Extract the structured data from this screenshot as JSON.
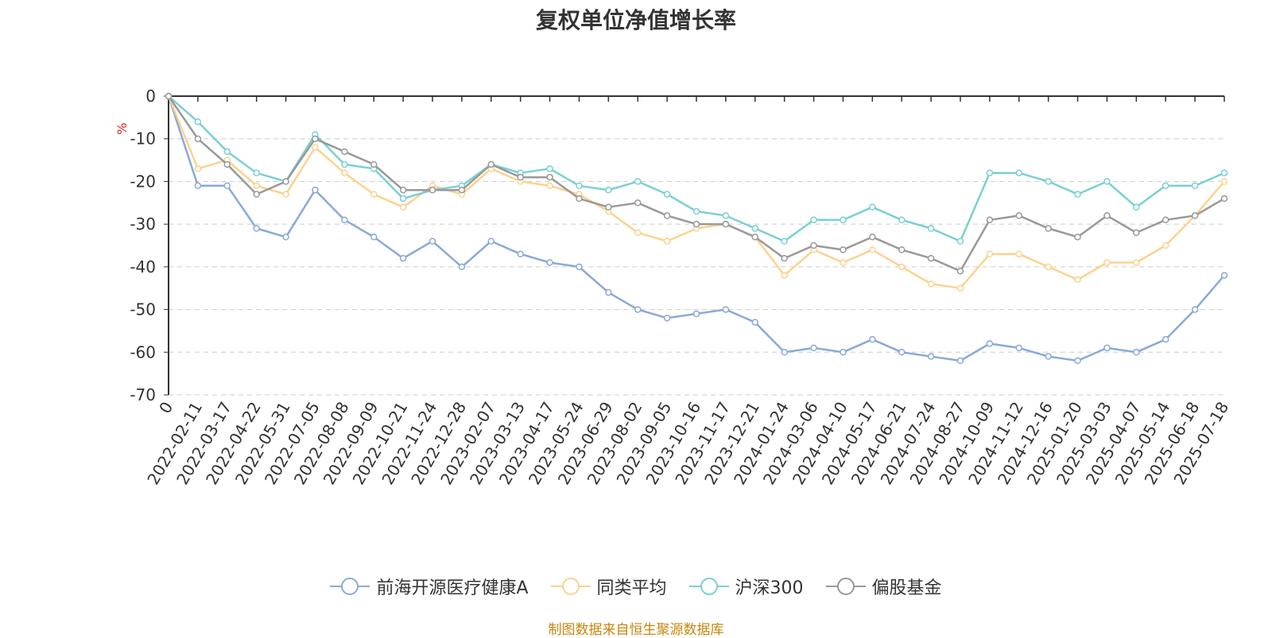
{
  "title": "复权单位净值增长率",
  "source": "制图数据来自恒生聚源数据库",
  "colors": {
    "fund": "#8aa9d9",
    "peer": "#fcd28e",
    "hs300": "#7ad0d3",
    "equity": "#999999"
  },
  "chart_data": {
    "type": "line",
    "title": "复权单位净值增长率",
    "ylabel": "%",
    "ylim": [
      -70,
      0
    ],
    "yticks": [
      "0",
      "-10",
      "-20",
      "-30",
      "-40",
      "-50",
      "-60",
      "-70"
    ],
    "grid": true,
    "legend": "bottom",
    "x": [
      "0",
      "2022-02-11",
      "2022-03-17",
      "2022-04-22",
      "2022-05-31",
      "2022-07-05",
      "2022-08-08",
      "2022-09-09",
      "2022-10-21",
      "2022-11-24",
      "2022-12-28",
      "2023-02-07",
      "2023-03-13",
      "2023-04-17",
      "2023-05-24",
      "2023-06-29",
      "2023-08-02",
      "2023-09-05",
      "2023-10-16",
      "2023-11-17",
      "2023-12-21",
      "2024-01-24",
      "2024-03-06",
      "2024-04-10",
      "2024-05-17",
      "2024-06-21",
      "2024-07-24",
      "2024-08-27",
      "2024-10-09",
      "2024-11-12",
      "2024-12-16",
      "2025-01-20",
      "2025-03-03",
      "2025-04-07",
      "2025-05-14",
      "2025-06-18",
      "2025-07-18"
    ],
    "series": [
      {
        "name": "前海开源医疗健康A",
        "color_key": "fund",
        "values": [
          0,
          -21,
          -21,
          -31,
          -33,
          -22,
          -29,
          -33,
          -38,
          -34,
          -40,
          -34,
          -37,
          -39,
          -40,
          -46,
          -50,
          -52,
          -51,
          -50,
          -53,
          -60,
          -59,
          -60,
          -57,
          -60,
          -61,
          -62,
          -58,
          -59,
          -61,
          -62,
          -59,
          -60,
          -57,
          -50,
          -42
        ]
      },
      {
        "name": "同类平均",
        "color_key": "peer",
        "values": [
          0,
          -17,
          -15,
          -21,
          -23,
          -12,
          -18,
          -23,
          -26,
          -21,
          -23,
          -17,
          -20,
          -21,
          -23,
          -27,
          -32,
          -34,
          -31,
          -30,
          -33,
          -42,
          -36,
          -39,
          -36,
          -40,
          -44,
          -45,
          -37,
          -37,
          -40,
          -43,
          -39,
          -39,
          -35,
          -28,
          -20
        ]
      },
      {
        "name": "沪深300",
        "color_key": "hs300",
        "values": [
          0,
          -6,
          -13,
          -18,
          -20,
          -9,
          -16,
          -17,
          -24,
          -22,
          -21,
          -16,
          -18,
          -17,
          -21,
          -22,
          -20,
          -23,
          -27,
          -28,
          -31,
          -34,
          -29,
          -29,
          -26,
          -29,
          -31,
          -34,
          -18,
          -18,
          -20,
          -23,
          -20,
          -26,
          -21,
          -21,
          -18
        ]
      },
      {
        "name": "偏股基金",
        "color_key": "equity",
        "values": [
          0,
          -10,
          -16,
          -23,
          -20,
          -10,
          -13,
          -16,
          -22,
          -22,
          -22,
          -16,
          -19,
          -19,
          -24,
          -26,
          -25,
          -28,
          -30,
          -30,
          -33,
          -38,
          -35,
          -36,
          -33,
          -36,
          -38,
          -41,
          -29,
          -28,
          -31,
          -33,
          -28,
          -32,
          -29,
          -28,
          -24
        ]
      }
    ]
  }
}
